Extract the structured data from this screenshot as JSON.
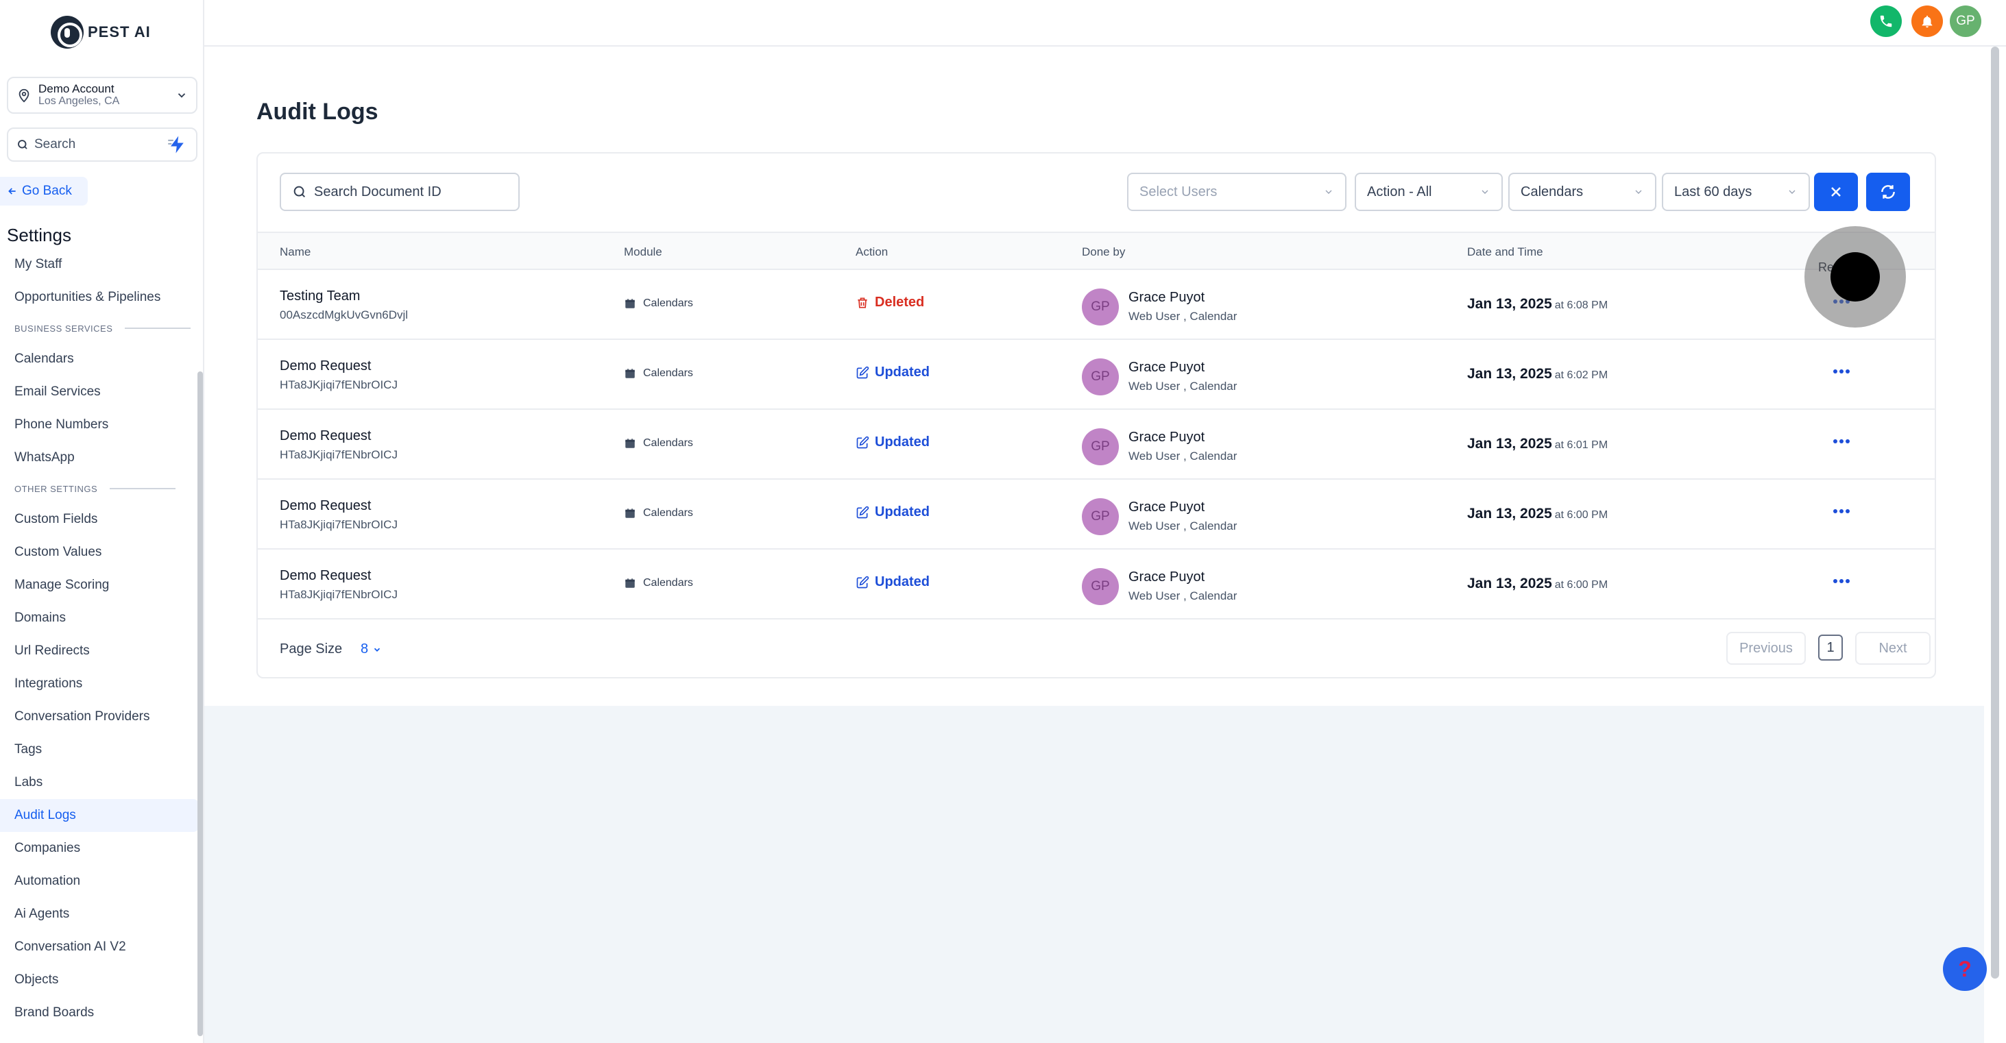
{
  "brand": {
    "name": "PEST AI"
  },
  "account": {
    "name": "Demo Account",
    "location": "Los Angeles, CA"
  },
  "sidebar": {
    "search_label": "Search",
    "go_back": "Go Back",
    "settings_title": "Settings",
    "items": [
      {
        "label": "My Staff"
      },
      {
        "label": "Opportunities & Pipelines"
      }
    ],
    "business_section": "BUSINESS SERVICES",
    "business_items": [
      {
        "label": "Calendars"
      },
      {
        "label": "Email Services"
      },
      {
        "label": "Phone Numbers"
      },
      {
        "label": "WhatsApp"
      }
    ],
    "other_section": "OTHER SETTINGS",
    "other_items": [
      {
        "label": "Custom Fields"
      },
      {
        "label": "Custom Values"
      },
      {
        "label": "Manage Scoring"
      },
      {
        "label": "Domains"
      },
      {
        "label": "Url Redirects"
      },
      {
        "label": "Integrations"
      },
      {
        "label": "Conversation Providers"
      },
      {
        "label": "Tags"
      },
      {
        "label": "Labs"
      },
      {
        "label": "Audit Logs"
      },
      {
        "label": "Companies"
      },
      {
        "label": "Automation"
      },
      {
        "label": "Ai Agents"
      },
      {
        "label": "Conversation AI V2"
      },
      {
        "label": "Objects"
      },
      {
        "label": "Brand Boards"
      }
    ],
    "active_item": "Audit Logs"
  },
  "topbar": {
    "user_initials": "GP"
  },
  "page": {
    "title": "Audit Logs"
  },
  "filters": {
    "search_placeholder": "Search Document ID",
    "users_placeholder": "Select Users",
    "action": "Action - All",
    "module": "Calendars",
    "date_range": "Last 60 days"
  },
  "table": {
    "columns": [
      "Name",
      "Module",
      "Action",
      "Done by",
      "Date and Time"
    ],
    "partial_column": "Re",
    "rows": [
      {
        "name": "Testing Team",
        "id": "00AszcdMgkUvGvn6Dvjl",
        "module": "Calendars",
        "action": "Deleted",
        "by_initials": "GP",
        "by_name": "Grace Puyot",
        "by_sub": "Web User , Calendar",
        "date": "Jan 13, 2025",
        "time": "at 6:08 PM"
      },
      {
        "name": "Demo Request",
        "id": "HTa8JKjiqi7fENbrOICJ",
        "module": "Calendars",
        "action": "Updated",
        "by_initials": "GP",
        "by_name": "Grace Puyot",
        "by_sub": "Web User , Calendar",
        "date": "Jan 13, 2025",
        "time": "at 6:02 PM"
      },
      {
        "name": "Demo Request",
        "id": "HTa8JKjiqi7fENbrOICJ",
        "module": "Calendars",
        "action": "Updated",
        "by_initials": "GP",
        "by_name": "Grace Puyot",
        "by_sub": "Web User , Calendar",
        "date": "Jan 13, 2025",
        "time": "at 6:01 PM"
      },
      {
        "name": "Demo Request",
        "id": "HTa8JKjiqi7fENbrOICJ",
        "module": "Calendars",
        "action": "Updated",
        "by_initials": "GP",
        "by_name": "Grace Puyot",
        "by_sub": "Web User , Calendar",
        "date": "Jan 13, 2025",
        "time": "at 6:00 PM"
      },
      {
        "name": "Demo Request",
        "id": "HTa8JKjiqi7fENbrOICJ",
        "module": "Calendars",
        "action": "Updated",
        "by_initials": "GP",
        "by_name": "Grace Puyot",
        "by_sub": "Web User , Calendar",
        "date": "Jan 13, 2025",
        "time": "at 6:00 PM"
      }
    ]
  },
  "pagination": {
    "page_size_label": "Page Size",
    "page_size": "8",
    "previous": "Previous",
    "current_page": "1",
    "next": "Next"
  },
  "help": {
    "label": "?"
  },
  "colors": {
    "primary": "#155eef",
    "deleted": "#d92d20",
    "avatar": "#c084c6"
  }
}
